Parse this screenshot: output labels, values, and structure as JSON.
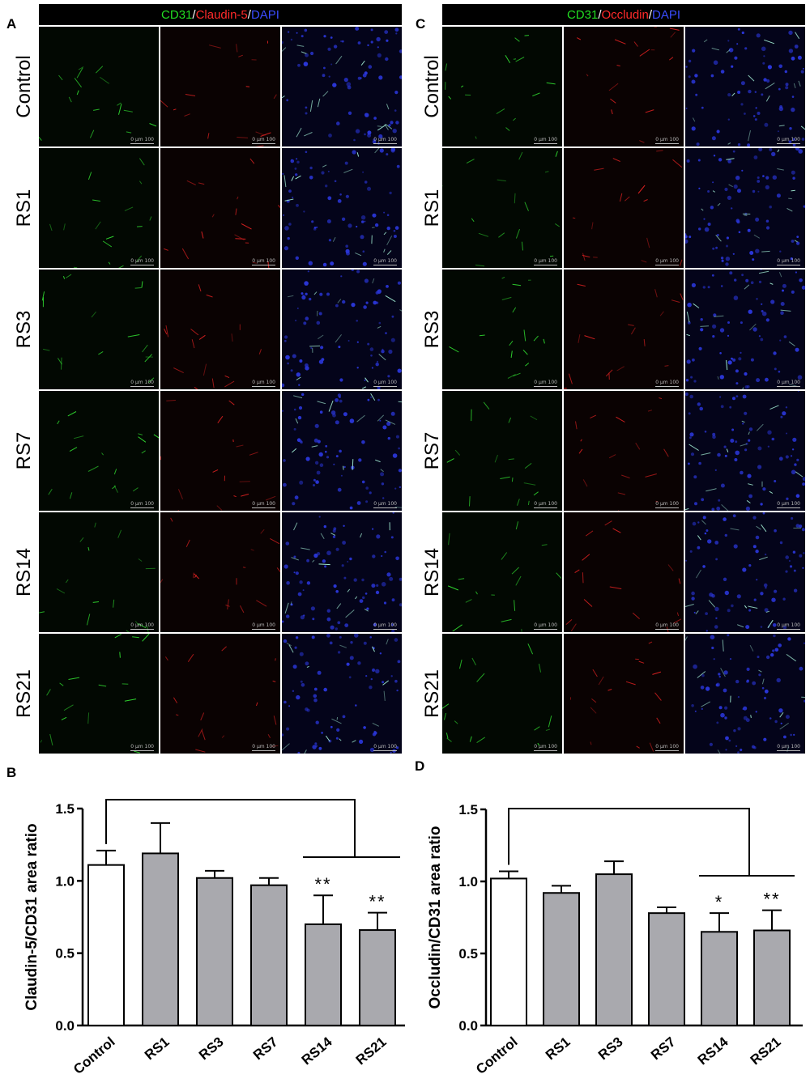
{
  "panels": [
    {
      "letter": "A",
      "header": {
        "c1": "CD31",
        "sep1": "/",
        "c2": "Claudin-5",
        "sep2": "/",
        "c3": "DAPI"
      },
      "rows": [
        "Control",
        "RS1",
        "RS3",
        "RS7",
        "RS14",
        "RS21"
      ],
      "scale_bar": {
        "zero": "0",
        "unit": "µm",
        "max": "100"
      }
    },
    {
      "letter": "C",
      "header": {
        "c1": "CD31",
        "sep1": "/",
        "c2": "Occludin",
        "sep2": "/",
        "c3": "DAPI"
      },
      "rows": [
        "Control",
        "RS1",
        "RS3",
        "RS7",
        "RS14",
        "RS21"
      ],
      "scale_bar": {
        "zero": "0",
        "unit": "µm",
        "max": "100"
      }
    }
  ],
  "colors": {
    "green": "#22dd22",
    "red": "#ff2a2a",
    "blue": "#3a4cff",
    "control_bar": "#ffffff",
    "treated_bar": "#a9a9ae"
  },
  "chart_data": [
    {
      "letter": "B",
      "type": "bar",
      "categories": [
        "Control",
        "RS1",
        "RS3",
        "RS7",
        "RS14",
        "RS21"
      ],
      "values": [
        1.11,
        1.19,
        1.02,
        0.97,
        0.7,
        0.66
      ],
      "errors": [
        0.1,
        0.21,
        0.05,
        0.05,
        0.2,
        0.12
      ],
      "significance": [
        "",
        "",
        "",
        "",
        "**",
        "**"
      ],
      "ylabel": "Claudin-5/CD31 area ratio",
      "ylim": [
        0,
        1.5
      ],
      "yticks": [
        "0.0",
        "0.5",
        "1.0",
        "1.5"
      ],
      "comparison_bracket": {
        "from": "Control",
        "to": [
          "RS14",
          "RS21"
        ]
      }
    },
    {
      "letter": "D",
      "type": "bar",
      "categories": [
        "Control",
        "RS1",
        "RS3",
        "RS7",
        "RS14",
        "RS21"
      ],
      "values": [
        1.02,
        0.92,
        1.05,
        0.78,
        0.65,
        0.66
      ],
      "errors": [
        0.05,
        0.05,
        0.09,
        0.04,
        0.13,
        0.14
      ],
      "significance": [
        "",
        "",
        "",
        "",
        "*",
        "**"
      ],
      "ylabel": "Occludin/CD31 area ratio",
      "ylim": [
        0,
        1.5
      ],
      "yticks": [
        "0.0",
        "0.5",
        "1.0",
        "1.5"
      ],
      "comparison_bracket": {
        "from": "Control",
        "to": [
          "RS14",
          "RS21"
        ]
      }
    }
  ]
}
